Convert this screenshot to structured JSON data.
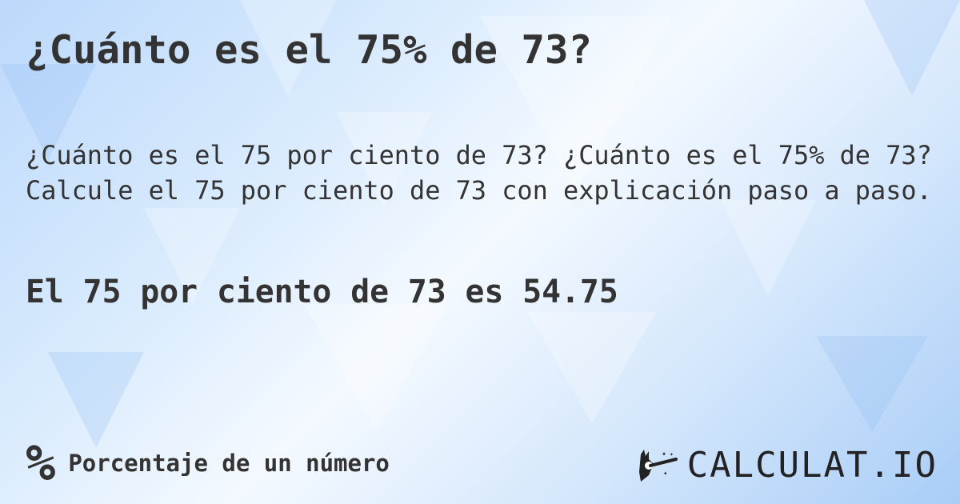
{
  "title": "¿Cuánto es el 75% de 73?",
  "description": [
    "¿Cuánto es el 75 por ciento de 73? ¿Cuánto es el 75% de 73?",
    "Calcule el 75 por ciento de 73 con explicación paso a paso."
  ],
  "result": "El 75 por ciento de 73 es 54.75",
  "footer": {
    "icon": "percent-icon",
    "icon_glyph": "%",
    "category": "Porcentaje de un número"
  },
  "logo": {
    "text": "CALCULAT.IO",
    "icon": "magic-hand-icon"
  },
  "colors": {
    "text": "#333333",
    "bg_light": "#f4f9ff",
    "bg_blue": "#a9cdf7"
  }
}
